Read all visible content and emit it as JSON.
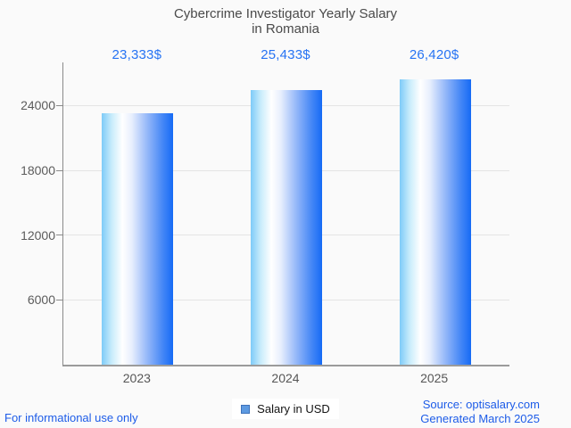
{
  "header": {
    "title_line1": "Cybercrime Investigator Yearly Salary",
    "title_line2": "in Romania"
  },
  "chart_data": {
    "type": "bar",
    "title": "Cybercrime Investigator Yearly Salary in Romania",
    "categories": [
      "2023",
      "2024",
      "2025"
    ],
    "values": [
      23333,
      25433,
      26420
    ],
    "value_labels": [
      "23,333$",
      "25,433$",
      "26,420$"
    ],
    "series": [
      {
        "name": "Salary in USD",
        "values": [
          23333,
          25433,
          26420
        ]
      }
    ],
    "xlabel": "",
    "ylabel": "",
    "yticks": [
      6000,
      12000,
      18000,
      24000
    ],
    "ylim": [
      0,
      28000
    ],
    "grid": true,
    "legend_position": "bottom",
    "colors": {
      "bar_gradient_left": "#7ecbf8",
      "bar_gradient_mid": "#ffffff",
      "bar_gradient_right": "#156af5",
      "value_label": "#2673f3",
      "axis_line": "#8a8a8a",
      "gridline": "#e4e4e4",
      "background": "#fafafa"
    }
  },
  "legend": {
    "label": "Salary in USD",
    "marker_fill": "#5d9ae1",
    "marker_border": "#3e72ba"
  },
  "footer": {
    "disclaimer": "For informational use only",
    "source": "Source: optisalary.com",
    "generated": "Generated March 2025"
  }
}
